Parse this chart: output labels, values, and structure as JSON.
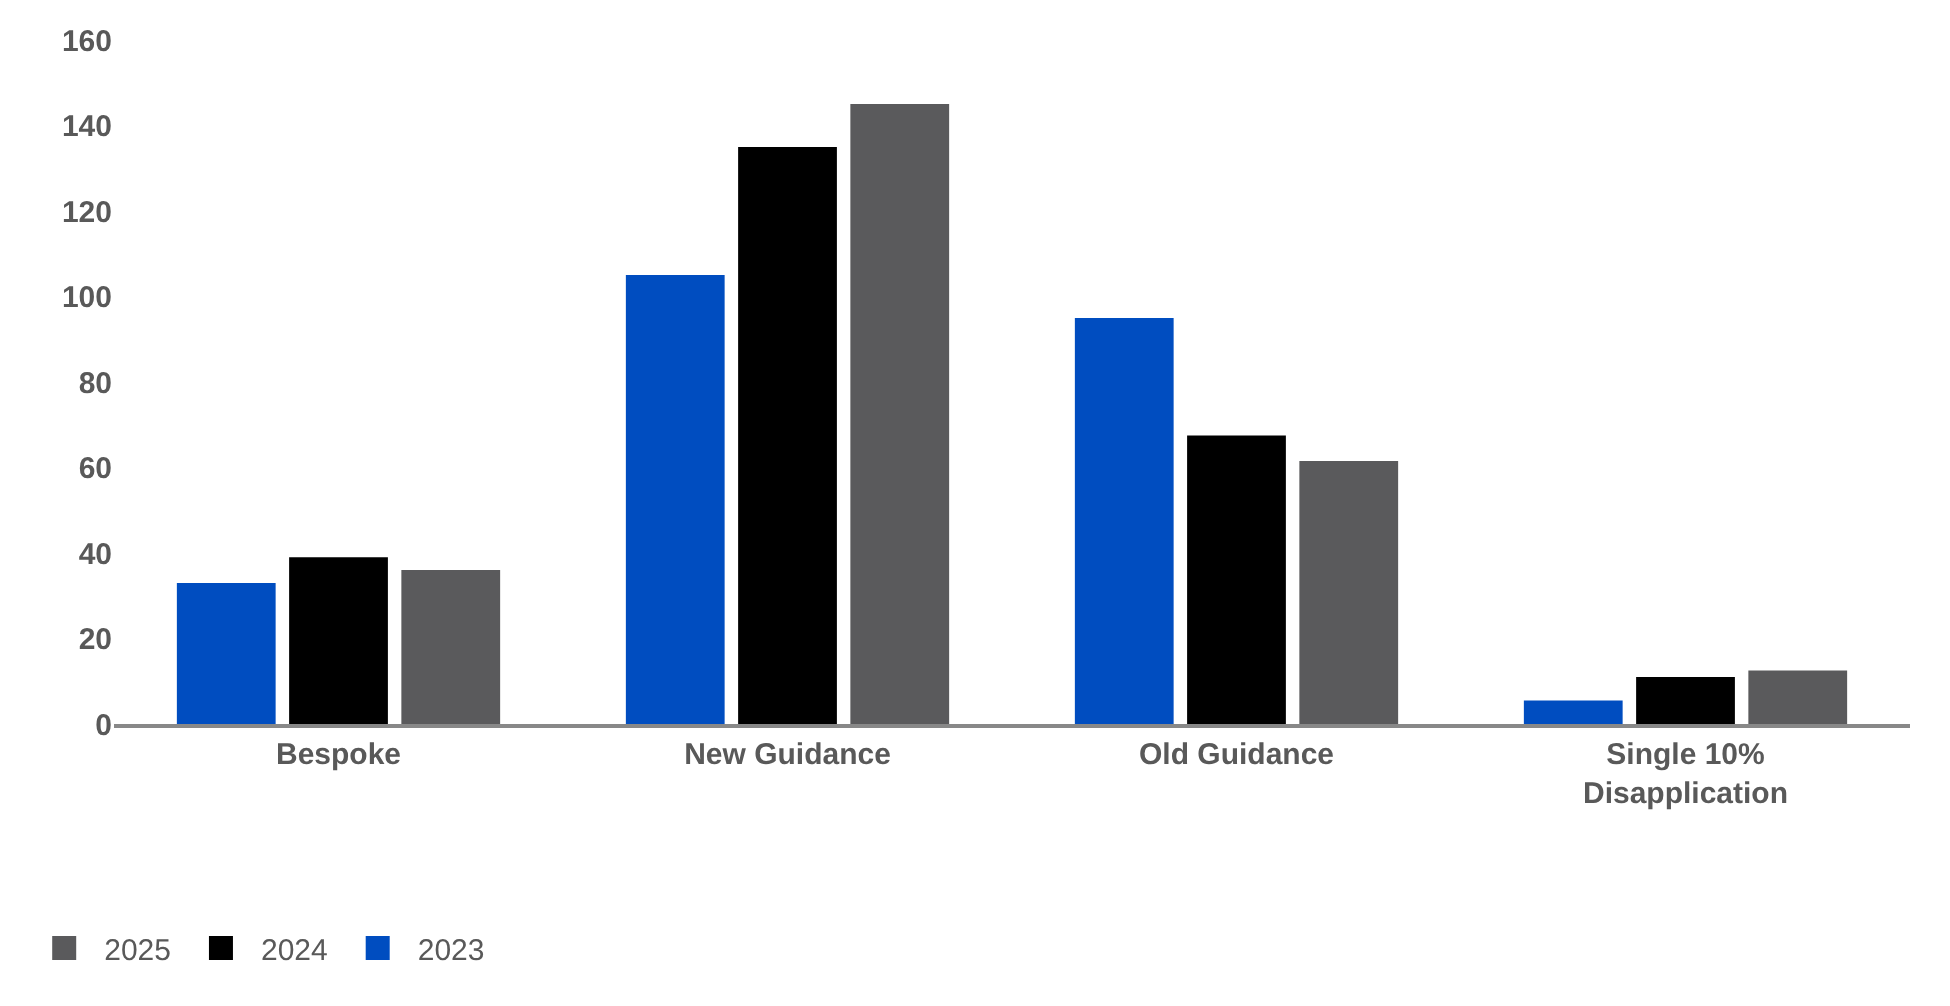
{
  "chart_data": {
    "type": "bar",
    "categories": [
      "Bespoke",
      "New Guidance",
      "Old Guidance",
      "Single 10% Disapplication"
    ],
    "series": [
      {
        "name": "2023",
        "color": "#004dc0",
        "values": [
          33,
          105,
          95,
          5.5
        ]
      },
      {
        "name": "2024",
        "color": "#000000",
        "values": [
          39,
          135,
          67.5,
          11
        ]
      },
      {
        "name": "2025",
        "color": "#5a5a5c",
        "values": [
          36,
          145,
          61.5,
          12.5
        ]
      }
    ],
    "ylim": [
      0,
      160
    ],
    "yticks": [
      0,
      20,
      40,
      60,
      80,
      100,
      120,
      140,
      160
    ],
    "legend": "bottom left"
  }
}
